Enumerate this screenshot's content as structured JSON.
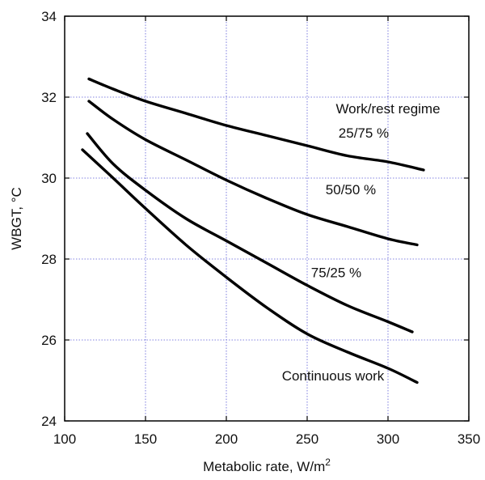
{
  "chart_data": {
    "type": "line",
    "title": "",
    "xlabel": "Metabolic rate, W/m",
    "xlabel_superscript": "2",
    "ylabel": "WBGT, °C",
    "xlim": [
      100,
      350
    ],
    "ylim": [
      24,
      34
    ],
    "xticks": [
      100,
      150,
      200,
      250,
      300,
      350
    ],
    "yticks": [
      24,
      26,
      28,
      30,
      32,
      34
    ],
    "grid": true,
    "legend": "none",
    "series": [
      {
        "name": "25/75 %",
        "x": [
          115,
          130,
          150,
          175,
          200,
          225,
          250,
          275,
          300,
          322
        ],
        "y": [
          32.45,
          32.2,
          31.9,
          31.6,
          31.3,
          31.05,
          30.8,
          30.55,
          30.4,
          30.2
        ]
      },
      {
        "name": "50/50 %",
        "x": [
          115,
          130,
          150,
          175,
          200,
          225,
          250,
          275,
          300,
          318
        ],
        "y": [
          31.9,
          31.45,
          30.95,
          30.45,
          29.95,
          29.5,
          29.1,
          28.8,
          28.5,
          28.35
        ]
      },
      {
        "name": "75/25 %",
        "x": [
          114,
          130,
          150,
          175,
          200,
          225,
          250,
          275,
          300,
          315
        ],
        "y": [
          31.1,
          30.35,
          29.7,
          29.0,
          28.45,
          27.9,
          27.35,
          26.85,
          26.45,
          26.2
        ]
      },
      {
        "name": "Continuous work",
        "x": [
          111,
          130,
          150,
          175,
          200,
          225,
          250,
          275,
          300,
          318
        ],
        "y": [
          30.7,
          30.0,
          29.25,
          28.35,
          27.55,
          26.8,
          26.15,
          25.7,
          25.3,
          24.95
        ]
      }
    ],
    "annotations": [
      {
        "text": "Work/rest regime",
        "x": 300,
        "y": 31.6
      },
      {
        "text": "25/75 %",
        "x": 285,
        "y": 31.0
      },
      {
        "text": "50/50 %",
        "x": 277,
        "y": 29.6
      },
      {
        "text": "75/25 %",
        "x": 268,
        "y": 27.55
      },
      {
        "text": "Continuous work",
        "x": 266,
        "y": 25.0
      }
    ],
    "colors": {
      "line": "#000000",
      "grid": "#5b5bd6"
    }
  }
}
